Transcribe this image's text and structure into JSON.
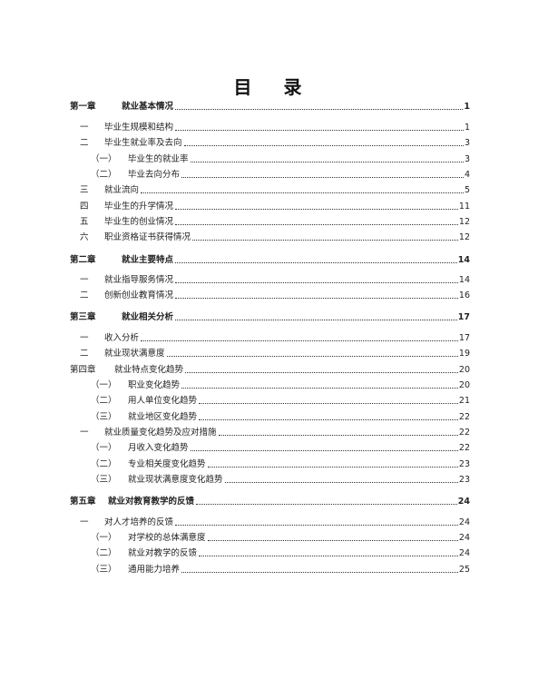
{
  "title": "目 录",
  "entries": [
    {
      "level": 0,
      "num": "第一章",
      "text": "就业基本情况",
      "page": "1"
    },
    {
      "level": 1,
      "num": "一",
      "text": "毕业生规模和结构",
      "page": "1"
    },
    {
      "level": 1,
      "num": "二",
      "text": "毕业生就业率及去向",
      "page": "3"
    },
    {
      "level": 2,
      "num": "（一）",
      "text": "毕业生的就业率",
      "page": "3"
    },
    {
      "level": 2,
      "num": "（二）",
      "text": "毕业去向分布",
      "page": "4"
    },
    {
      "level": 1,
      "num": "三",
      "text": "就业流向",
      "page": "5"
    },
    {
      "level": 1,
      "num": "四",
      "text": "毕业生的升学情况",
      "page": "11"
    },
    {
      "level": 1,
      "num": "五",
      "text": "毕业生的创业情况",
      "page": "12"
    },
    {
      "level": 1,
      "num": "六",
      "text": "职业资格证书获得情况",
      "page": "12"
    },
    {
      "level": 0,
      "num": "第二章",
      "text": "就业主要特点",
      "page": "14"
    },
    {
      "level": 1,
      "num": "一",
      "text": "就业指导服务情况",
      "page": "14"
    },
    {
      "level": 1,
      "num": "二",
      "text": "创新创业教育情况",
      "page": "16"
    },
    {
      "level": 0,
      "num": "第三章",
      "text": "就业相关分析",
      "page": "17"
    },
    {
      "level": 1,
      "num": "一",
      "text": "收入分析",
      "page": "17"
    },
    {
      "level": 1,
      "num": "二",
      "text": "就业现状满意度",
      "page": "19"
    },
    {
      "level": 0,
      "num": "第四章",
      "text": "就业特点变化趋势",
      "page": "20",
      "plain": true
    },
    {
      "level": 2,
      "num": "（一）",
      "text": "职业变化趋势",
      "page": "20"
    },
    {
      "level": 2,
      "num": "（二）",
      "text": "用人单位变化趋势",
      "page": "21"
    },
    {
      "level": 2,
      "num": "（三）",
      "text": "就业地区变化趋势",
      "page": "22"
    },
    {
      "level": 1,
      "num": "一",
      "text": "就业质量变化趋势及应对措施",
      "page": "22"
    },
    {
      "level": 2,
      "num": "（一）",
      "text": "月收入变化趋势",
      "page": "22"
    },
    {
      "level": 2,
      "num": "（二）",
      "text": "专业相关度变化趋势",
      "page": "23"
    },
    {
      "level": 2,
      "num": "（三）",
      "text": "就业现状满意度变化趋势",
      "page": "23"
    },
    {
      "level": 0,
      "num": "第五章",
      "text": "就业对教育教学的反馈",
      "page": "24"
    },
    {
      "level": 1,
      "num": "一",
      "text": "对人才培养的反馈",
      "page": "24"
    },
    {
      "level": 2,
      "num": "（一）",
      "text": "对学校的总体满意度",
      "page": "24"
    },
    {
      "level": 2,
      "num": "（二）",
      "text": "就业对教学的反馈",
      "page": "24"
    },
    {
      "level": 2,
      "num": "（三）",
      "text": "通用能力培养",
      "page": "25"
    }
  ]
}
